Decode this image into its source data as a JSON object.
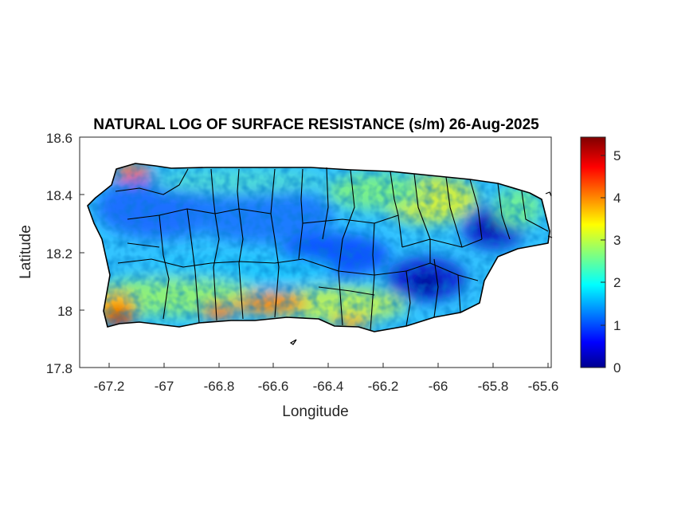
{
  "title": "NATURAL LOG OF SURFACE RESISTANCE (s/m) 26-Aug-2025",
  "map": {
    "xlabel": "Longitude",
    "ylabel": "Latitude",
    "xlim": [
      -67.3,
      -65.58
    ],
    "ylim": [
      17.8,
      18.6
    ],
    "xticks": [
      "-67.2",
      "-67",
      "-66.8",
      "-66.6",
      "-66.4",
      "-66.2",
      "-66",
      "-65.8",
      "-65.6"
    ],
    "yticks": [
      "18.6",
      "18.4",
      "18.2",
      "18",
      "17.8"
    ],
    "region": "Puerto Rico",
    "colormap": "jet",
    "boundary_color": "#000000"
  },
  "colorbar": {
    "range": [
      0,
      5.5
    ],
    "ticks": [
      "5",
      "4",
      "3",
      "2",
      "1",
      "0"
    ]
  }
}
